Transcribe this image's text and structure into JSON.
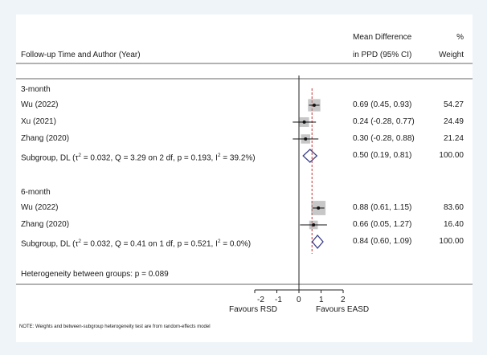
{
  "header": {
    "col_study": "Follow-up Time and Author (Year)",
    "col_md_line1": "Mean Difference",
    "col_md_line2": "in PPD (95% CI)",
    "col_w_line1": "%",
    "col_w_line2": "Weight"
  },
  "groups": [
    {
      "label": "3-month",
      "studies": [
        {
          "name": "Wu (2022)",
          "md": 0.69,
          "lo": 0.45,
          "hi": 0.93,
          "ci_text": "0.69 (0.45, 0.93)",
          "weight": "54.27"
        },
        {
          "name": "Xu (2021)",
          "md": 0.24,
          "lo": -0.28,
          "hi": 0.77,
          "ci_text": "0.24 (-0.28, 0.77)",
          "weight": "24.49"
        },
        {
          "name": "Zhang (2020)",
          "md": 0.3,
          "lo": -0.28,
          "hi": 0.88,
          "ci_text": "0.30 (-0.28, 0.88)",
          "weight": "21.24"
        }
      ],
      "subgroup": {
        "label_prefix": "Subgroup, DL (",
        "tau": "τ",
        "tau_rest": " = 0.032, Q = 3.29 on 2 df, p = 0.193, I",
        "i2_rest": " = 39.2%)",
        "md": 0.5,
        "lo": 0.19,
        "hi": 0.81,
        "ci_text": "0.50 (0.19, 0.81)",
        "weight": "100.00"
      }
    },
    {
      "label": "6-month",
      "studies": [
        {
          "name": "Wu (2022)",
          "md": 0.88,
          "lo": 0.61,
          "hi": 1.15,
          "ci_text": "0.88 (0.61, 1.15)",
          "weight": "83.60"
        },
        {
          "name": "Zhang (2020)",
          "md": 0.66,
          "lo": 0.05,
          "hi": 1.27,
          "ci_text": "0.66 (0.05, 1.27)",
          "weight": "16.40"
        }
      ],
      "subgroup": {
        "label_prefix": "Subgroup, DL (",
        "tau": "τ",
        "tau_rest": " = 0.032, Q = 0.41 on 1 df, p = 0.521, I",
        "i2_rest": " = 0.0%)",
        "md": 0.84,
        "lo": 0.6,
        "hi": 1.09,
        "ci_text": "0.84 (0.60, 1.09)",
        "weight": "100.00"
      }
    }
  ],
  "heterogeneity": "Heterogeneity between groups: p = 0.089",
  "sup2": "2",
  "axis": {
    "ticks": [
      -2,
      -1,
      0,
      1,
      2
    ],
    "tick_labels": [
      "-2",
      "-1",
      "0",
      "1",
      "2"
    ],
    "favours_left": "Favours RSD",
    "favours_right": "Favours EASD"
  },
  "note": "NOTE: Weights and between-subgroup heterogeneity test are from random-effects model",
  "chart_data": {
    "type": "forest",
    "xlabel": "",
    "xlim": [
      -2,
      2
    ],
    "overall_reference_line": 0.59,
    "series": [
      {
        "name": "3-month",
        "studies": [
          "Wu (2022)",
          "Xu (2021)",
          "Zhang (2020)"
        ],
        "md": [
          0.69,
          0.24,
          0.3
        ],
        "lo": [
          0.45,
          -0.28,
          -0.28
        ],
        "hi": [
          0.93,
          0.77,
          0.88
        ],
        "weight": [
          54.27,
          24.49,
          21.24
        ],
        "pooled": {
          "md": 0.5,
          "lo": 0.19,
          "hi": 0.81
        }
      },
      {
        "name": "6-month",
        "studies": [
          "Wu (2022)",
          "Zhang (2020)"
        ],
        "md": [
          0.88,
          0.66
        ],
        "lo": [
          0.61,
          0.05
        ],
        "hi": [
          1.15,
          1.27
        ],
        "weight": [
          83.6,
          16.4
        ],
        "pooled": {
          "md": 0.84,
          "lo": 0.6,
          "hi": 1.09
        }
      }
    ],
    "colors": {
      "diamond": "#3a3f86",
      "ref_line": "#c83232",
      "box": "#999999"
    }
  }
}
